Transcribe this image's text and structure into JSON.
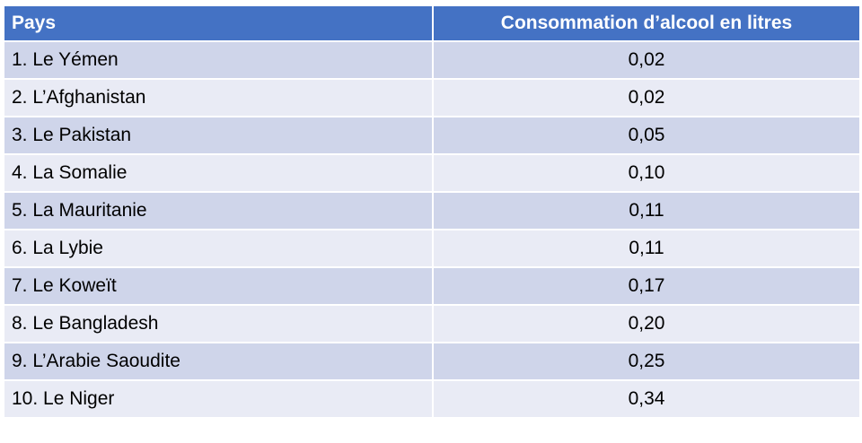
{
  "table": {
    "header": [
      "Pays",
      "Consommation d’alcool en litres"
    ],
    "rows": [
      [
        "1. Le Yémen",
        "0,02"
      ],
      [
        "2. L’Afghanistan",
        "0,02"
      ],
      [
        "3. Le Pakistan",
        "0,05"
      ],
      [
        "4. La Somalie",
        "0,10"
      ],
      [
        "5. La Mauritanie",
        "0,11"
      ],
      [
        "6. La Lybie",
        "0,11"
      ],
      [
        "7. Le Koweït",
        "0,17"
      ],
      [
        "8. Le Bangladesh",
        "0,20"
      ],
      [
        "9. L’Arabie Saoudite",
        "0,25"
      ],
      [
        "10. Le Niger",
        "0,34"
      ]
    ]
  }
}
